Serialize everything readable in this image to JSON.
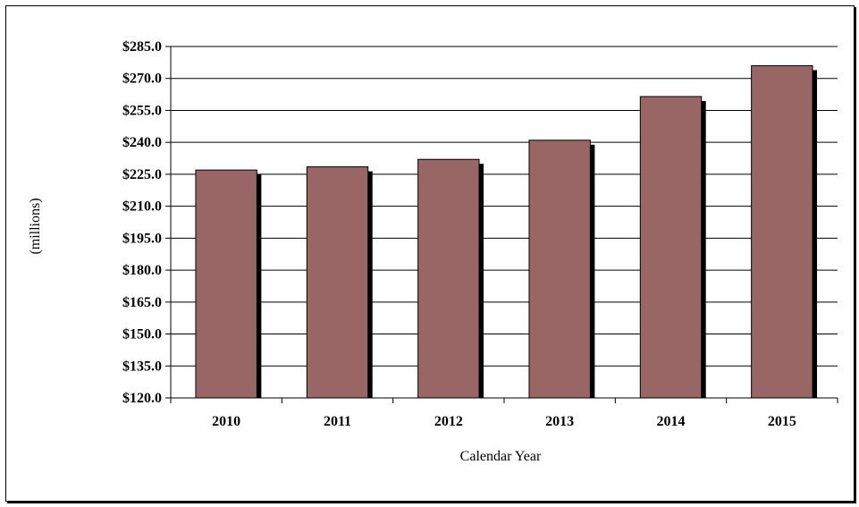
{
  "chart_data": {
    "type": "bar",
    "title": "",
    "xlabel": "Calendar Year",
    "ylabel": "(millions)",
    "categories": [
      "2010",
      "2011",
      "2012",
      "2013",
      "2014",
      "2015"
    ],
    "values": [
      227.0,
      228.5,
      232.0,
      241.0,
      261.5,
      276.0
    ],
    "ylim": [
      120,
      285
    ],
    "yticks": [
      120,
      135,
      150,
      165,
      180,
      195,
      210,
      225,
      240,
      255,
      270,
      285
    ],
    "ytick_labels": [
      "$120.0",
      "$135.0",
      "$150.0",
      "$165.0",
      "$180.0",
      "$195.0",
      "$210.0",
      "$225.0",
      "$240.0",
      "$255.0",
      "$270.0",
      "$285.0"
    ],
    "grid": true,
    "legend": "none",
    "bar_color": "#996666",
    "shadow_color": "#000000"
  }
}
